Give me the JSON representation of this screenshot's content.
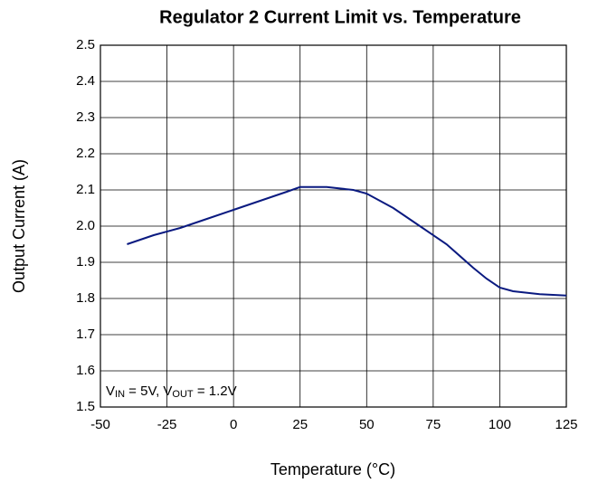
{
  "chart_data": {
    "type": "line",
    "title": "Regulator 2 Current Limit vs. Temperature",
    "x_label": "Temperature (°C)",
    "y_label": "Output Current (A)",
    "annotation": [
      "V",
      "IN",
      " = 5V, V",
      "OUT",
      " = 1.2V"
    ],
    "x": [
      -40,
      -30,
      -20,
      -10,
      0,
      10,
      20,
      25,
      35,
      45,
      50,
      60,
      70,
      80,
      90,
      95,
      100,
      105,
      115,
      125
    ],
    "series": [
      {
        "name": "Output Current",
        "color": "#0a1a80",
        "values": [
          1.95,
          1.975,
          1.995,
          2.02,
          2.045,
          2.07,
          2.095,
          2.108,
          2.108,
          2.1,
          2.09,
          2.05,
          2.0,
          1.95,
          1.885,
          1.855,
          1.83,
          1.82,
          1.812,
          1.808
        ]
      }
    ],
    "xlim": [
      -50,
      125
    ],
    "xticks": [
      -50,
      -25,
      0,
      25,
      50,
      75,
      100,
      125
    ],
    "ylim": [
      1.5,
      2.5
    ],
    "yticks": [
      1.5,
      1.6,
      1.7,
      1.8,
      1.9,
      {
        "value": 2,
        "label": "2.0"
      },
      2.1,
      2.2,
      2.3,
      2.4,
      2.5
    ],
    "grid": true
  }
}
